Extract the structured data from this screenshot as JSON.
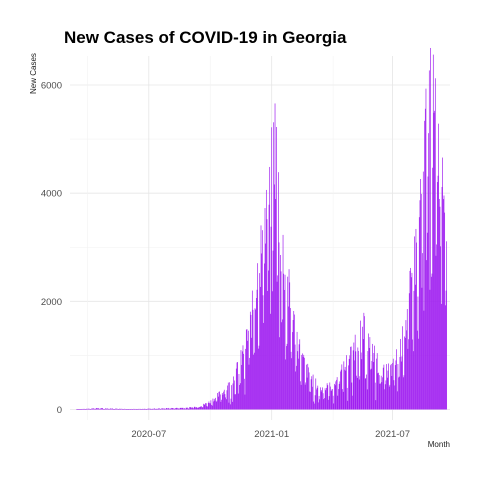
{
  "chart_data": {
    "type": "bar",
    "title": "New Cases of COVID-19 in Georgia",
    "xlabel": "Month",
    "ylabel": "New Cases",
    "x_range": [
      "2020-03-05",
      "2021-09-25"
    ],
    "ylim": [
      0,
      6300
    ],
    "y_ticks": [
      0,
      2000,
      4000,
      6000
    ],
    "y_tick_labels": [
      "0",
      "2000",
      "4000",
      "6000"
    ],
    "x_ticks": [
      "2020-07-01",
      "2021-01-01",
      "2021-07-01"
    ],
    "x_tick_labels": [
      "2020-07",
      "2021-01",
      "2021-07"
    ],
    "bar_color": "#a020f0",
    "grid": true,
    "legend": "none",
    "series": [
      {
        "values": [
          {
            "x": "2020-03-15",
            "y": 5
          },
          {
            "x": "2020-04-01",
            "y": 15
          },
          {
            "x": "2020-04-15",
            "y": 25
          },
          {
            "x": "2020-05-01",
            "y": 20
          },
          {
            "x": "2020-05-15",
            "y": 15
          },
          {
            "x": "2020-06-01",
            "y": 10
          },
          {
            "x": "2020-06-15",
            "y": 10
          },
          {
            "x": "2020-07-01",
            "y": 15
          },
          {
            "x": "2020-07-15",
            "y": 20
          },
          {
            "x": "2020-08-01",
            "y": 25
          },
          {
            "x": "2020-08-15",
            "y": 30
          },
          {
            "x": "2020-09-01",
            "y": 40
          },
          {
            "x": "2020-09-15",
            "y": 60
          },
          {
            "x": "2020-10-01",
            "y": 150
          },
          {
            "x": "2020-10-15",
            "y": 300
          },
          {
            "x": "2020-11-01",
            "y": 500
          },
          {
            "x": "2020-11-15",
            "y": 900
          },
          {
            "x": "2020-12-01",
            "y": 1700
          },
          {
            "x": "2020-12-15",
            "y": 3000
          },
          {
            "x": "2020-12-25",
            "y": 4000
          },
          {
            "x": "2021-01-01",
            "y": 4500
          },
          {
            "x": "2021-01-05",
            "y": 5450
          },
          {
            "x": "2021-01-10",
            "y": 4400
          },
          {
            "x": "2021-01-15",
            "y": 3300
          },
          {
            "x": "2021-02-01",
            "y": 1800
          },
          {
            "x": "2021-02-15",
            "y": 1000
          },
          {
            "x": "2021-03-01",
            "y": 600
          },
          {
            "x": "2021-03-15",
            "y": 400
          },
          {
            "x": "2021-04-01",
            "y": 450
          },
          {
            "x": "2021-04-15",
            "y": 700
          },
          {
            "x": "2021-05-01",
            "y": 1100
          },
          {
            "x": "2021-05-15",
            "y": 1650
          },
          {
            "x": "2021-06-01",
            "y": 1150
          },
          {
            "x": "2021-06-15",
            "y": 700
          },
          {
            "x": "2021-07-01",
            "y": 800
          },
          {
            "x": "2021-07-15",
            "y": 1250
          },
          {
            "x": "2021-08-01",
            "y": 2600
          },
          {
            "x": "2021-08-10",
            "y": 3800
          },
          {
            "x": "2021-08-20",
            "y": 5300
          },
          {
            "x": "2021-08-27",
            "y": 6200
          },
          {
            "x": "2021-09-01",
            "y": 5500
          },
          {
            "x": "2021-09-10",
            "y": 5000
          },
          {
            "x": "2021-09-20",
            "y": 4300
          }
        ]
      }
    ]
  }
}
